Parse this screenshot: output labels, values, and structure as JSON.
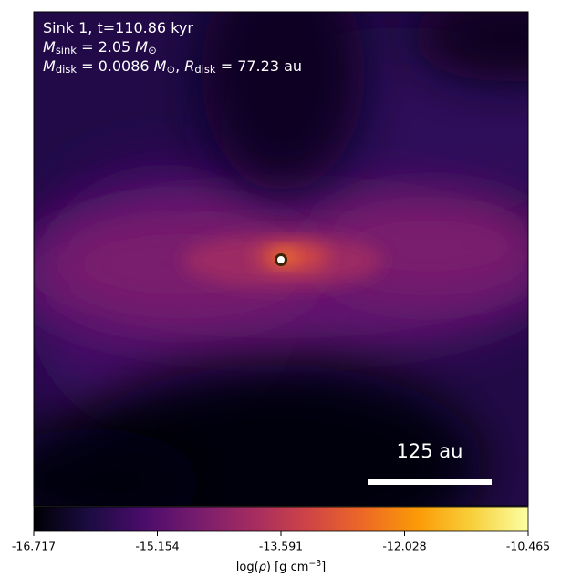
{
  "chart_data": {
    "type": "density-map",
    "annotations": [
      [
        {
          "text": "Sink 1, t=110.86 kyr"
        }
      ],
      [
        {
          "italic": "M"
        },
        {
          "sub": "sink"
        },
        {
          "text": " = 2.05 "
        },
        {
          "italic": "M"
        },
        {
          "sub": "⊙"
        }
      ],
      [
        {
          "italic": "M"
        },
        {
          "sub": "disk"
        },
        {
          "text": " = 0.0086 "
        },
        {
          "italic": "M"
        },
        {
          "sub": "⊙"
        },
        {
          "text": ", "
        },
        {
          "italic": "R"
        },
        {
          "sub": "disk"
        },
        {
          "text": " = 77.23 au"
        }
      ]
    ],
    "scale_bar_label": "125 au",
    "colorbar": {
      "lim": [
        -16.717,
        -10.465
      ],
      "ticks": [
        -16.717,
        -15.154,
        -13.591,
        -12.028,
        -10.465
      ],
      "label": [
        {
          "text": "log("
        },
        {
          "italic": "ρ"
        },
        {
          "text": ") [g cm"
        },
        {
          "sup": "−3"
        },
        {
          "text": "]"
        }
      ],
      "colors": [
        "#000004",
        "#1b0c41",
        "#4a0c6b",
        "#781c6d",
        "#a52c60",
        "#cf4446",
        "#ed6925",
        "#fb9b06",
        "#f7d13d",
        "#fcffa4"
      ]
    }
  }
}
